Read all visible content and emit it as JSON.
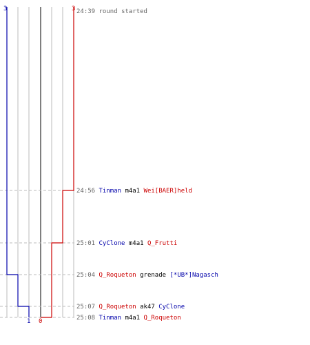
{
  "colors": {
    "team_a": "#0000aa",
    "team_b": "#cc0000",
    "time": "#666666",
    "neutral": "#000000",
    "grid": "#bbbbbb",
    "center_line": "#555555",
    "event_dash": "#bbbbbb"
  },
  "scores": {
    "team_a_start": "3",
    "team_b_start": "3",
    "team_a_end": "1",
    "team_b_end": "0"
  },
  "events": [
    {
      "time": "24:39",
      "parts": [
        {
          "text": "round started",
          "team": "time"
        }
      ]
    },
    {
      "time": "24:56",
      "parts": [
        {
          "text": "Tinman",
          "team": "a"
        },
        {
          "text": "m4a1",
          "team": "neutral"
        },
        {
          "text": "Wei[BAER]held",
          "team": "b"
        }
      ]
    },
    {
      "time": "25:01",
      "parts": [
        {
          "text": "CyClone",
          "team": "a"
        },
        {
          "text": "m4a1",
          "team": "neutral"
        },
        {
          "text": "Q_Frutti",
          "team": "b"
        }
      ]
    },
    {
      "time": "25:04",
      "parts": [
        {
          "text": "Q_Roqueton",
          "team": "b"
        },
        {
          "text": "grenade",
          "team": "neutral"
        },
        {
          "text": "[*UB*]Nagasch",
          "team": "a"
        }
      ]
    },
    {
      "time": "25:07",
      "parts": [
        {
          "text": "Q_Roqueton",
          "team": "b"
        },
        {
          "text": "ak47",
          "team": "neutral"
        },
        {
          "text": "CyClone",
          "team": "a"
        }
      ]
    },
    {
      "time": "25:08",
      "parts": [
        {
          "text": "Tinman",
          "team": "a"
        },
        {
          "text": "m4a1",
          "team": "neutral"
        },
        {
          "text": "Q_Roqueton",
          "team": "b"
        }
      ]
    }
  ],
  "blue_alive": [
    3,
    3,
    3,
    2,
    1,
    1
  ],
  "red_alive": [
    3,
    2,
    1,
    1,
    1,
    0
  ]
}
